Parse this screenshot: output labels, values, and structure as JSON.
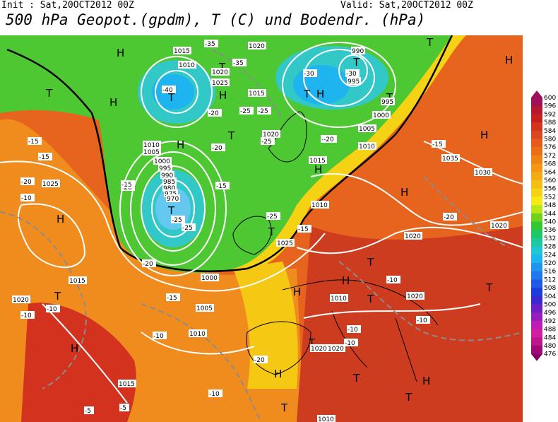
{
  "header": {
    "init": "Init : Sat,20OCT2012 00Z",
    "valid": "Valid: Sat,20OCT2012 00Z",
    "title": "500 hPa Geopot.(gpdm), T (C) und Bodendr. (hPa)"
  },
  "legend": {
    "values": [
      600,
      596,
      592,
      588,
      584,
      580,
      576,
      572,
      568,
      564,
      560,
      556,
      552,
      548,
      544,
      540,
      536,
      532,
      528,
      524,
      520,
      516,
      512,
      508,
      504,
      500,
      496,
      492,
      488,
      484,
      480,
      476
    ],
    "colors": [
      "#a0105a",
      "#b51830",
      "#c81e1e",
      "#d2321e",
      "#dc461e",
      "#e65a1e",
      "#eb6e14",
      "#f08214",
      "#f59614",
      "#f5aa14",
      "#f5be14",
      "#f5d214",
      "#f5eb14",
      "#b9e614",
      "#6ed21e",
      "#32c832",
      "#1ec864",
      "#1ec8a0",
      "#1ec8d2",
      "#1eb4f0",
      "#1e96f0",
      "#1e78f0",
      "#1e5ae6",
      "#1e3cdc",
      "#3c28d2",
      "#6e1ec8",
      "#961ebe",
      "#be1eb4",
      "#d21ea0",
      "#be148c",
      "#a00a78",
      "#820064"
    ]
  },
  "map": {
    "highs": [
      "H",
      "H",
      "H",
      "H",
      "H",
      "H",
      "H",
      "H",
      "H",
      "H",
      "H",
      "H",
      "H",
      "H",
      "H"
    ],
    "lows": [
      "T",
      "T",
      "T",
      "T",
      "T",
      "T",
      "T",
      "T",
      "T",
      "T",
      "T",
      "T",
      "T",
      "T",
      "T",
      "T",
      "T",
      "T"
    ],
    "pressure_labels": [
      "1015",
      "1010",
      "1025",
      "1020",
      "1020",
      "1015",
      "990",
      "995",
      "995",
      "1000",
      "1005",
      "1010",
      "1020",
      "1015",
      "1010",
      "1005",
      "1000",
      "995",
      "990",
      "985",
      "980",
      "975",
      "970",
      "1035",
      "1030",
      "1025",
      "1020",
      "1020",
      "1015",
      "1010",
      "1010",
      "1025",
      "1020",
      "1020",
      "1000",
      "1005",
      "1010",
      "1020",
      "1020",
      "1015",
      "1010"
    ],
    "temp_labels": [
      "-35",
      "-35",
      "-40",
      "-30",
      "-25",
      "-25",
      "-30",
      "-30",
      "-25",
      "-20",
      "-20",
      "-15",
      "-15",
      "-20",
      "-20",
      "-25",
      "-25",
      "-20",
      "-15",
      "-15",
      "-25",
      "-10",
      "-10",
      "-15",
      "-20",
      "-15",
      "-10",
      "-10",
      "-10",
      "-10",
      "-10",
      "-10",
      "-15",
      "-5",
      "-5",
      "-10",
      "-20",
      "-20"
    ]
  }
}
